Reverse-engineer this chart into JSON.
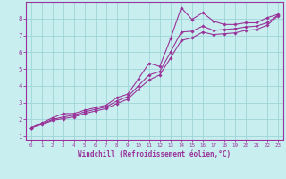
{
  "bg_color": "#c8eef0",
  "line_color": "#993399",
  "grid_color": "#9dd4d8",
  "xlabel": "Windchill (Refroidissement éolien,°C)",
  "xlim": [
    -0.5,
    23.5
  ],
  "ylim": [
    0.8,
    9.0
  ],
  "yticks": [
    1,
    2,
    3,
    4,
    5,
    6,
    7,
    8
  ],
  "xticks": [
    0,
    1,
    2,
    3,
    4,
    5,
    6,
    7,
    8,
    9,
    10,
    11,
    12,
    13,
    14,
    15,
    16,
    17,
    18,
    19,
    20,
    21,
    22,
    23
  ],
  "line1_x": [
    0,
    1,
    2,
    3,
    4,
    5,
    6,
    7,
    8,
    9,
    10,
    11,
    12,
    13,
    14,
    15,
    16,
    17,
    18,
    19,
    20,
    21,
    22,
    23
  ],
  "line1_y": [
    1.5,
    1.8,
    2.1,
    2.35,
    2.35,
    2.55,
    2.7,
    2.85,
    3.3,
    3.5,
    4.4,
    5.35,
    5.15,
    6.8,
    8.65,
    7.95,
    8.35,
    7.85,
    7.65,
    7.65,
    7.75,
    7.75,
    8.05,
    8.25
  ],
  "line2_x": [
    0,
    1,
    2,
    3,
    4,
    5,
    6,
    7,
    8,
    9,
    10,
    11,
    12,
    13,
    14,
    15,
    16,
    17,
    18,
    19,
    20,
    21,
    22,
    23
  ],
  "line2_y": [
    1.5,
    1.75,
    2.0,
    2.15,
    2.25,
    2.45,
    2.6,
    2.75,
    3.1,
    3.35,
    4.0,
    4.65,
    4.85,
    6.0,
    7.2,
    7.25,
    7.55,
    7.3,
    7.35,
    7.4,
    7.5,
    7.55,
    7.75,
    8.2
  ],
  "line3_x": [
    0,
    1,
    2,
    3,
    4,
    5,
    6,
    7,
    8,
    9,
    10,
    11,
    12,
    13,
    14,
    15,
    16,
    17,
    18,
    19,
    20,
    21,
    22,
    23
  ],
  "line3_y": [
    1.5,
    1.7,
    1.95,
    2.05,
    2.15,
    2.35,
    2.5,
    2.65,
    2.95,
    3.2,
    3.8,
    4.35,
    4.65,
    5.65,
    6.7,
    6.85,
    7.2,
    7.05,
    7.1,
    7.15,
    7.3,
    7.35,
    7.6,
    8.15
  ]
}
